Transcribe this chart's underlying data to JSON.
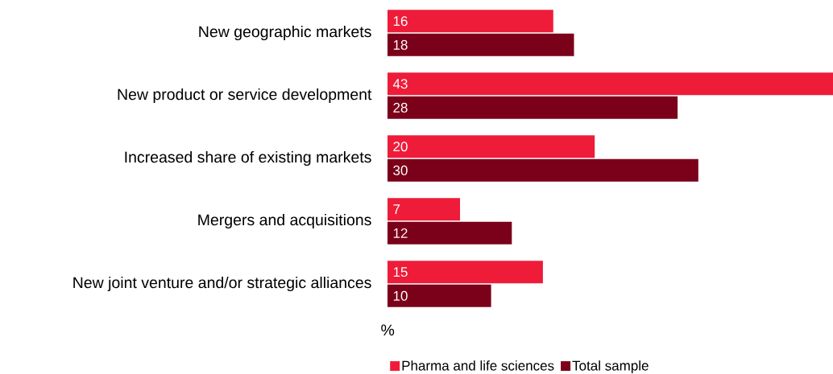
{
  "chart_data": {
    "type": "bar",
    "orientation": "horizontal",
    "xlabel": "%",
    "categories": [
      "New geographic markets",
      "New product or service development",
      "Increased share of existing markets",
      "Mergers and acquisitions",
      "New joint venture and/or strategic alliances"
    ],
    "series": [
      {
        "name": "Pharma and life sciences",
        "color": "#ee1c39",
        "values": [
          16,
          43,
          20,
          7,
          15
        ]
      },
      {
        "name": "Total sample",
        "color": "#7b0019",
        "values": [
          18,
          28,
          30,
          12,
          10
        ]
      }
    ],
    "xlim": [
      0,
      43
    ],
    "data_labels": true,
    "legend": "bottom"
  }
}
